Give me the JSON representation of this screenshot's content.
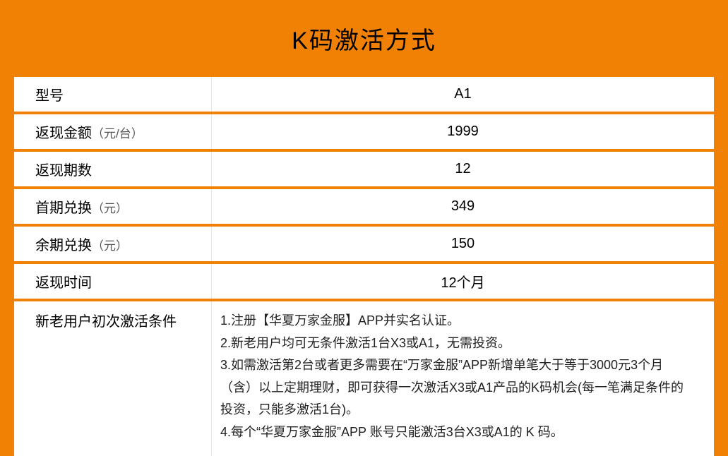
{
  "title": "K码激活方式",
  "labels": {
    "model": "型号",
    "cashback_amount": "返现金额",
    "cashback_amount_unit": "（元/台）",
    "periods": "返现期数",
    "first_redeem": "首期兑换",
    "first_redeem_unit": "（元）",
    "rest_redeem": "余期兑换",
    "rest_redeem_unit": "（元）",
    "cashback_time": "返现时间",
    "conditions": "新老用户初次激活条件"
  },
  "values": {
    "model": "A1",
    "cashback_amount": "1999",
    "periods": "12",
    "first_redeem": "349",
    "rest_redeem": "150",
    "cashback_time": "12个月"
  },
  "conditions": [
    "1.注册【华夏万家金服】APP并实名认证。",
    "2.新老用户均可无条件激活1台X3或A1，无需投资。",
    "3.如需激活第2台或者更多需要在“万家金服”APP新增单笔大于等于3000元3个月（含）以上定期理财，即可获得一次激活X3或A1产品的K码机会(每一笔满足条件的投资，只能多激活1台)。",
    "4.每个“华夏万家金服”APP 账号只能激活3台X3或A1的 K 码。"
  ],
  "colors": {
    "background": "#f08105",
    "cell_bg": "#ffffff",
    "text": "#000000"
  }
}
